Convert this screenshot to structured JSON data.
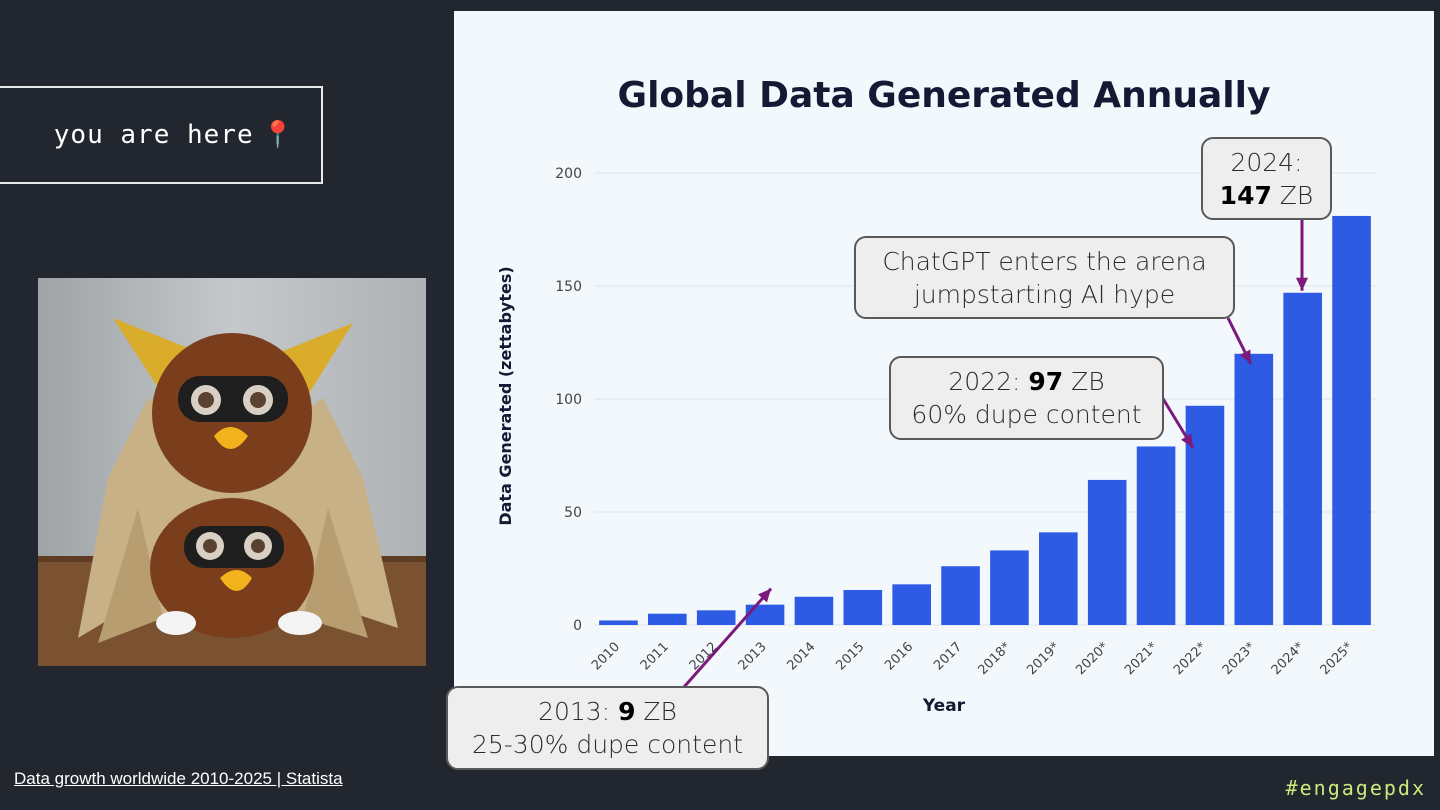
{
  "slide": {
    "here_label": "you are here",
    "here_icon": "📍",
    "source_link": "Data growth worldwide 2010-2025 | Statista",
    "hashtag": "#engagepdx",
    "bar_color": "#2d5be3",
    "arrow_color": "#7b1a7b"
  },
  "chart_data": {
    "type": "bar",
    "title": "Global Data Generated Annually",
    "xlabel": "Year",
    "ylabel": "Data Generated (zettabytes)",
    "ylim": [
      0,
      200
    ],
    "yticks": [
      0,
      50,
      100,
      150,
      200
    ],
    "grid": true,
    "categories": [
      "2010",
      "2011",
      "2012",
      "2013",
      "2014",
      "2015",
      "2016",
      "2017",
      "2018*",
      "2019*",
      "2020*",
      "2021*",
      "2022*",
      "2023*",
      "2024*",
      "2025*"
    ],
    "values": [
      2,
      5,
      6.5,
      9,
      12.5,
      15.5,
      18,
      26,
      33,
      41,
      64.2,
      79,
      97,
      120,
      147,
      181
    ]
  },
  "callouts": {
    "c2024": {
      "year": "2024:",
      "value": "147",
      "unit": " ZB"
    },
    "chatgpt": {
      "line1": "ChatGPT enters the arena",
      "line2": "jumpstarting AI hype"
    },
    "c2022": {
      "year": "2022: ",
      "value": "97",
      "unit": " ZB",
      "note": "60% dupe content"
    },
    "c2013": {
      "year": "2013: ",
      "value": "9",
      "unit": " ZB",
      "note": "25-30% dupe content"
    }
  }
}
